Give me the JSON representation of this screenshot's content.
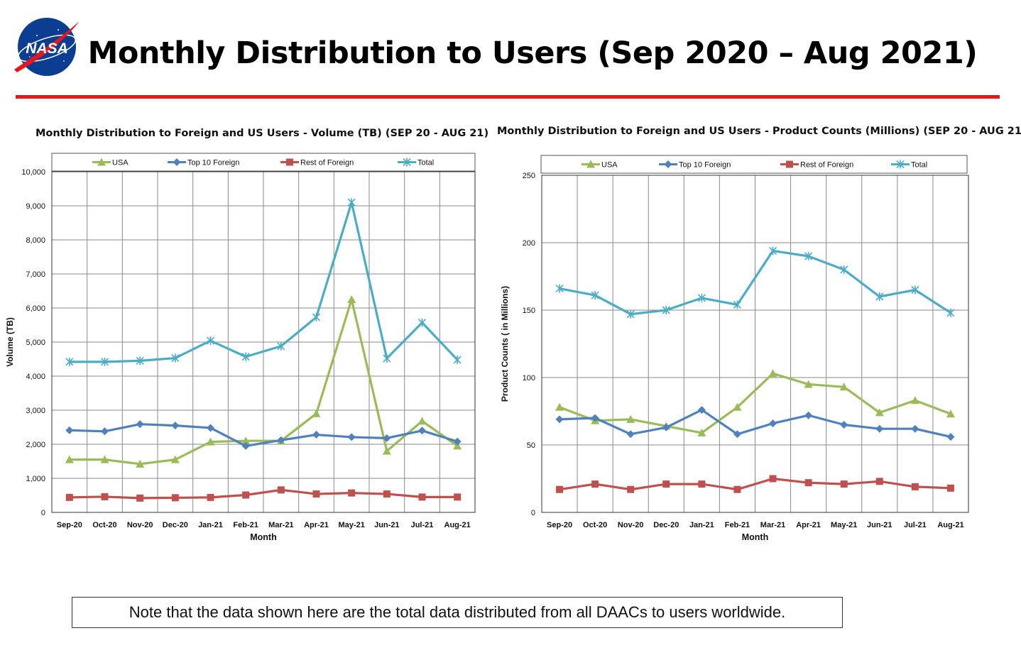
{
  "header": {
    "title": "Monthly Distribution to Users (Sep 2020 – Aug 2021)",
    "logo_text": "NASA",
    "rule_color": "#e8151b"
  },
  "series_styles": [
    {
      "name": "USA",
      "color": "#9bbb59",
      "marker": "triangle"
    },
    {
      "name": "Top 10 Foreign",
      "color": "#4f81bd",
      "marker": "diamond"
    },
    {
      "name": "Rest of Foreign",
      "color": "#c0504d",
      "marker": "square"
    },
    {
      "name": "Total",
      "color": "#4bacc6",
      "marker": "star"
    }
  ],
  "chart_data": [
    {
      "type": "line",
      "title": "Monthly Distribution to Foreign and US Users - Volume  (TB) (SEP 20 - AUG 21)",
      "xlabel": "Month",
      "ylabel": "Volume (TB)",
      "ylim": [
        0,
        10000
      ],
      "yticks": [
        "0",
        "1,000",
        "2,000",
        "3,000",
        "4,000",
        "5,000",
        "6,000",
        "7,000",
        "8,000",
        "9,000",
        "10,000"
      ],
      "grid": true,
      "legend_position": "top",
      "categories": [
        "Sep-20",
        "Oct-20",
        "Nov-20",
        "Dec-20",
        "Jan-21",
        "Feb-21",
        "Mar-21",
        "Apr-21",
        "May-21",
        "Jun-21",
        "Jul-21",
        "Aug-21"
      ],
      "series": [
        {
          "name": "USA",
          "values": [
            1550,
            1550,
            1420,
            1550,
            2070,
            2100,
            2100,
            2900,
            6250,
            1800,
            2680,
            1950
          ]
        },
        {
          "name": "Top 10 Foreign",
          "values": [
            2410,
            2380,
            2590,
            2550,
            2480,
            1950,
            2120,
            2280,
            2210,
            2180,
            2400,
            2080
          ]
        },
        {
          "name": "Rest of Foreign",
          "values": [
            440,
            460,
            420,
            430,
            440,
            510,
            660,
            540,
            570,
            540,
            450,
            450
          ]
        },
        {
          "name": "Total",
          "values": [
            4420,
            4420,
            4450,
            4530,
            5040,
            4570,
            4880,
            5730,
            9100,
            4520,
            5570,
            4480
          ]
        }
      ]
    },
    {
      "type": "line",
      "title": "Monthly Distribution to Foreign and US Users - Product Counts (Millions) (SEP 20 - AUG 21)",
      "xlabel": "Month",
      "ylabel": "Product Counts ( in Millions)",
      "ylim": [
        0,
        250
      ],
      "yticks": [
        "0",
        "50",
        "100",
        "150",
        "200",
        "250"
      ],
      "grid": true,
      "legend_position": "top",
      "categories": [
        "Sep-20",
        "Oct-20",
        "Nov-20",
        "Dec-20",
        "Jan-21",
        "Feb-21",
        "Mar-21",
        "Apr-21",
        "May-21",
        "Jun-21",
        "Jul-21",
        "Aug-21"
      ],
      "series": [
        {
          "name": "USA",
          "values": [
            78,
            68,
            69,
            64,
            59,
            78,
            103,
            95,
            93,
            74,
            83,
            73
          ]
        },
        {
          "name": "Top 10 Foreign",
          "values": [
            69,
            70,
            58,
            63,
            76,
            58,
            66,
            72,
            65,
            62,
            62,
            56
          ]
        },
        {
          "name": "Rest of Foreign",
          "values": [
            17,
            21,
            17,
            21,
            21,
            17,
            25,
            22,
            21,
            23,
            19,
            18
          ]
        },
        {
          "name": "Total",
          "values": [
            166,
            161,
            147,
            150,
            159,
            154,
            194,
            190,
            180,
            160,
            165,
            148
          ]
        }
      ]
    }
  ],
  "note": "Note that the data shown here are the total data distributed from all DAACs to users worldwide."
}
